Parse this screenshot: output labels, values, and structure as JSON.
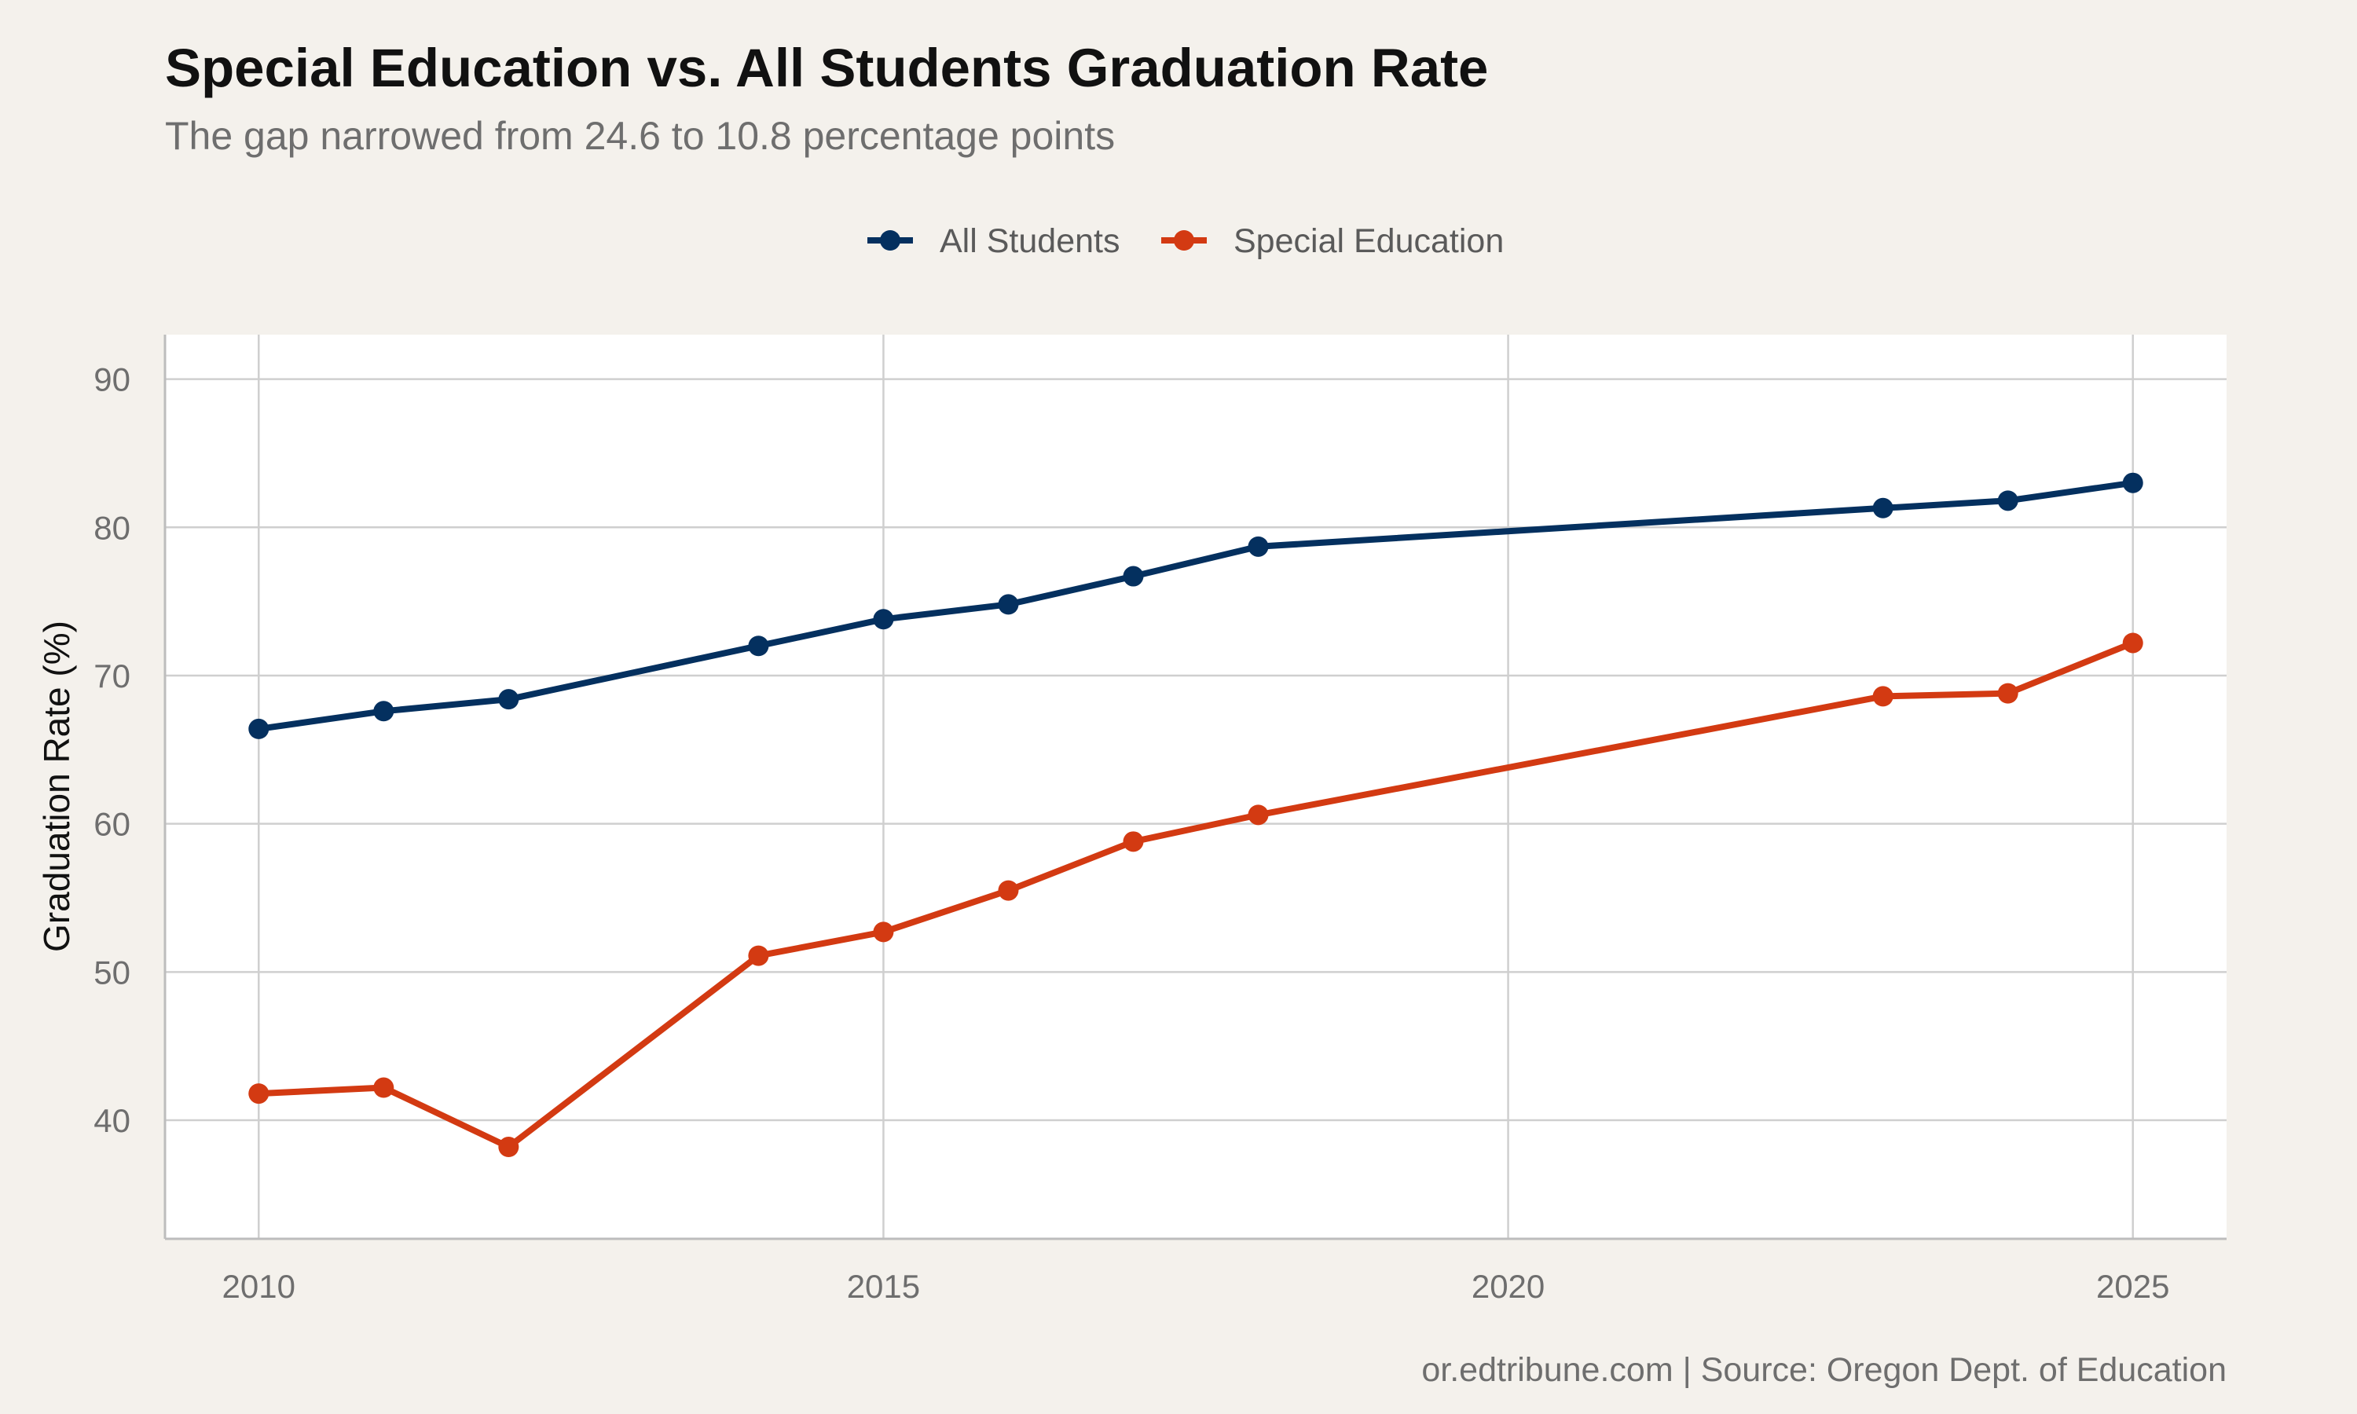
{
  "chart_data": {
    "type": "line",
    "title": "Special Education vs. All Students Graduation Rate",
    "subtitle": "The gap narrowed from 24.6 to 10.8 percentage points",
    "xlabel": "",
    "ylabel": "Graduation Rate (%)",
    "caption": "or.edtribune.com | Source: Oregon Dept. of Education",
    "xlim": [
      2009.25,
      2025.75
    ],
    "ylim": [
      32,
      93
    ],
    "x_ticks": [
      2010,
      2015,
      2020,
      2025
    ],
    "y_ticks": [
      40,
      50,
      60,
      70,
      80,
      90
    ],
    "grid": true,
    "legend_position": "top-center",
    "series": [
      {
        "name": "All Students",
        "color": "#04305F",
        "points": [
          {
            "x": 2010,
            "y": 66.4
          },
          {
            "x": 2011,
            "y": 67.6
          },
          {
            "x": 2012,
            "y": 68.4
          },
          {
            "x": 2014,
            "y": 72.0
          },
          {
            "x": 2015,
            "y": 73.8
          },
          {
            "x": 2016,
            "y": 74.8
          },
          {
            "x": 2017,
            "y": 76.7
          },
          {
            "x": 2018,
            "y": 78.7
          },
          {
            "x": 2023,
            "y": 81.3
          },
          {
            "x": 2024,
            "y": 81.8
          },
          {
            "x": 2025,
            "y": 83.0
          }
        ]
      },
      {
        "name": "Special Education",
        "color": "#D33A12",
        "points": [
          {
            "x": 2010,
            "y": 41.8
          },
          {
            "x": 2011,
            "y": 42.2
          },
          {
            "x": 2012,
            "y": 38.2
          },
          {
            "x": 2014,
            "y": 51.1
          },
          {
            "x": 2015,
            "y": 52.7
          },
          {
            "x": 2016,
            "y": 55.5
          },
          {
            "x": 2017,
            "y": 58.8
          },
          {
            "x": 2018,
            "y": 60.6
          },
          {
            "x": 2023,
            "y": 68.6
          },
          {
            "x": 2024,
            "y": 68.8
          },
          {
            "x": 2025,
            "y": 72.2
          }
        ]
      }
    ]
  }
}
